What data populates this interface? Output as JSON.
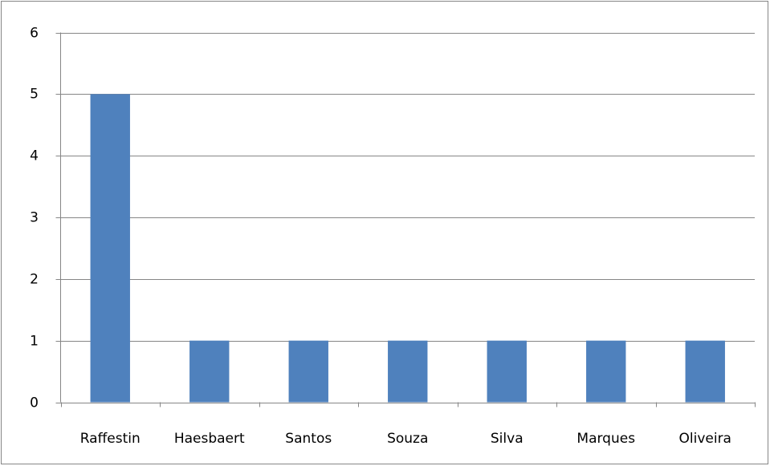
{
  "chart_data": {
    "type": "bar",
    "categories": [
      "Raffestin",
      "Haesbaert",
      "Santos",
      "Souza",
      "Silva",
      "Marques",
      "Oliveira"
    ],
    "values": [
      5,
      1,
      1,
      1,
      1,
      1,
      1
    ],
    "color": "#4f81bd",
    "ylim": [
      0,
      6
    ],
    "yticks": [
      0,
      1,
      2,
      3,
      4,
      5,
      6
    ],
    "grid": true
  }
}
